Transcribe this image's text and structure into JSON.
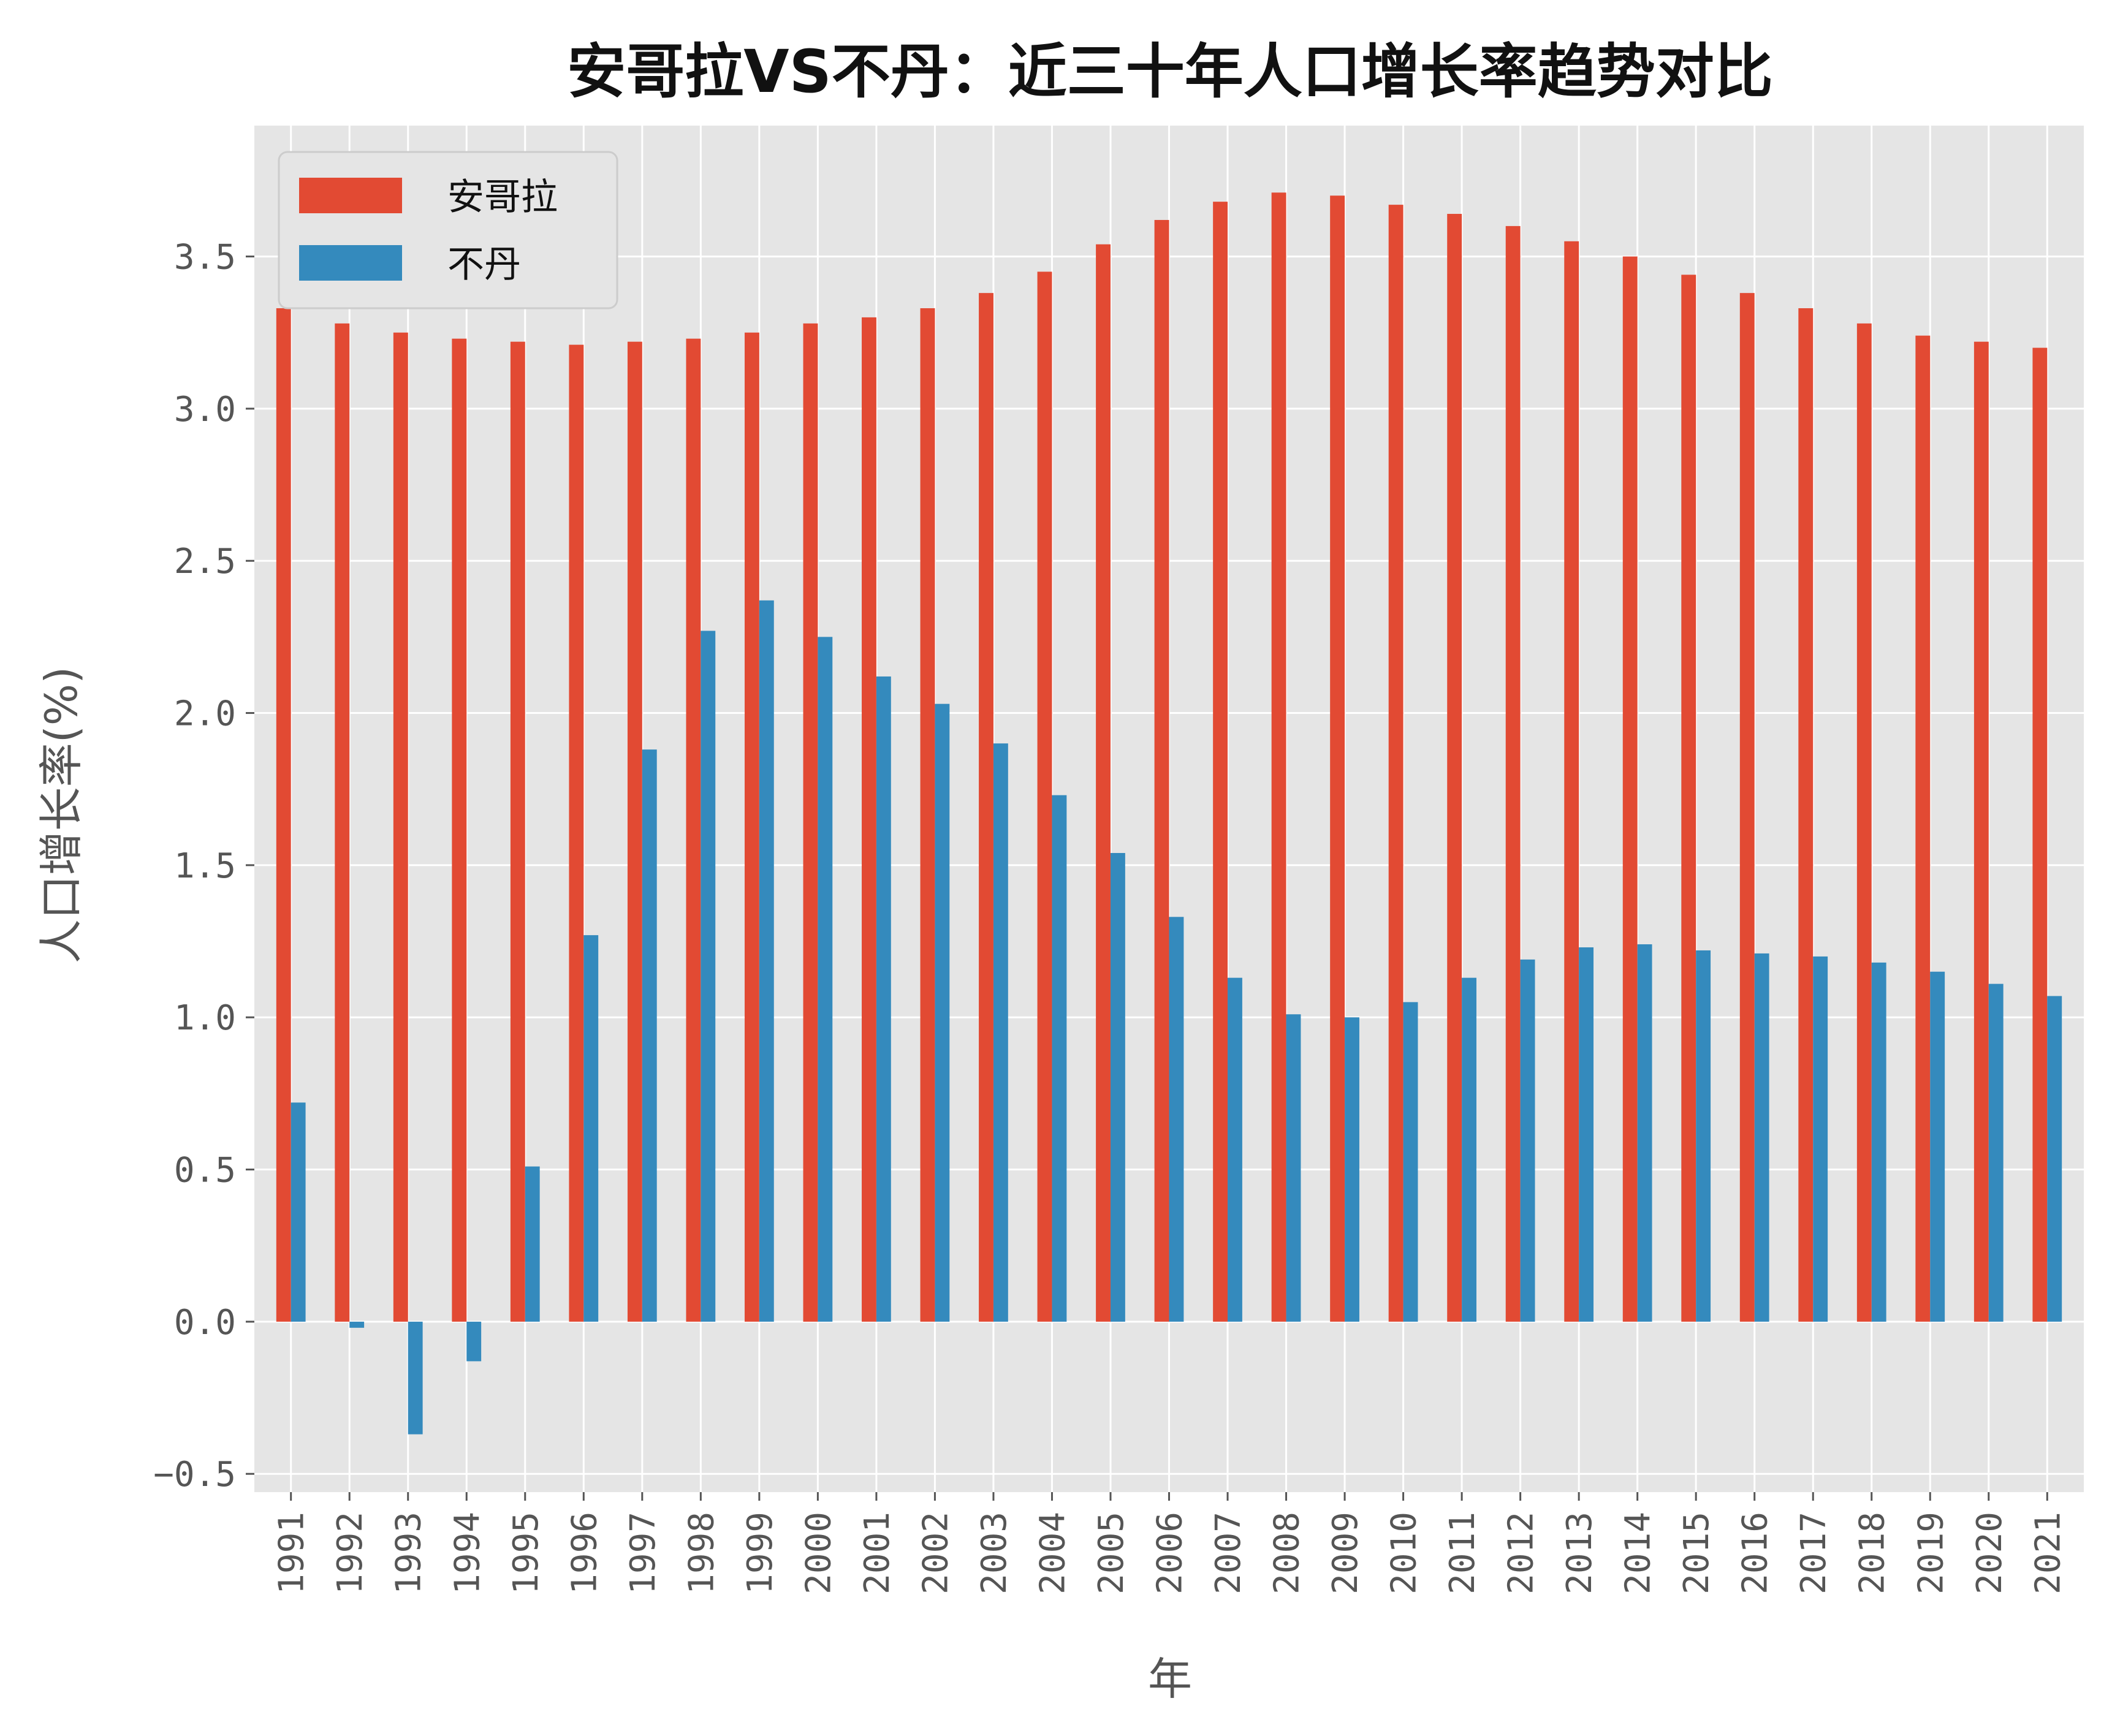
{
  "chart_data": {
    "type": "bar",
    "title": "安哥拉VS不丹：近三十年人口增长率趋势对比",
    "xlabel": "年",
    "ylabel": "人口增长率(%)",
    "categories": [
      "1991",
      "1992",
      "1993",
      "1994",
      "1995",
      "1996",
      "1997",
      "1998",
      "1999",
      "2000",
      "2001",
      "2002",
      "2003",
      "2004",
      "2005",
      "2006",
      "2007",
      "2008",
      "2009",
      "2010",
      "2011",
      "2012",
      "2013",
      "2014",
      "2015",
      "2016",
      "2017",
      "2018",
      "2019",
      "2020",
      "2021"
    ],
    "series": [
      {
        "name": "安哥拉",
        "color": "#E24A33",
        "values": [
          3.33,
          3.28,
          3.25,
          3.23,
          3.22,
          3.21,
          3.22,
          3.23,
          3.25,
          3.28,
          3.3,
          3.33,
          3.38,
          3.45,
          3.54,
          3.62,
          3.68,
          3.71,
          3.7,
          3.67,
          3.64,
          3.6,
          3.55,
          3.5,
          3.44,
          3.38,
          3.33,
          3.28,
          3.24,
          3.22,
          3.2
        ]
      },
      {
        "name": "不丹",
        "color": "#348ABD",
        "values": [
          0.72,
          -0.02,
          -0.37,
          -0.13,
          0.51,
          1.27,
          1.88,
          2.27,
          2.37,
          2.25,
          2.12,
          2.03,
          1.9,
          1.73,
          1.54,
          1.33,
          1.13,
          1.01,
          1.0,
          1.05,
          1.13,
          1.19,
          1.23,
          1.24,
          1.22,
          1.21,
          1.2,
          1.18,
          1.15,
          1.11,
          1.07
        ]
      }
    ],
    "ylim": [
      -0.56,
      3.93
    ],
    "yticks": [
      -0.5,
      0.0,
      0.5,
      1.0,
      1.5,
      2.0,
      2.5,
      3.0,
      3.5
    ],
    "ytick_labels": [
      "−0.5",
      "0.0",
      "0.5",
      "1.0",
      "1.5",
      "2.0",
      "2.5",
      "3.0",
      "3.5"
    ],
    "grid": true,
    "legend_position": "upper-left",
    "style": {
      "plot_background": "#E5E5E5",
      "grid_color": "#FFFFFF",
      "text_color": "#555555"
    }
  }
}
